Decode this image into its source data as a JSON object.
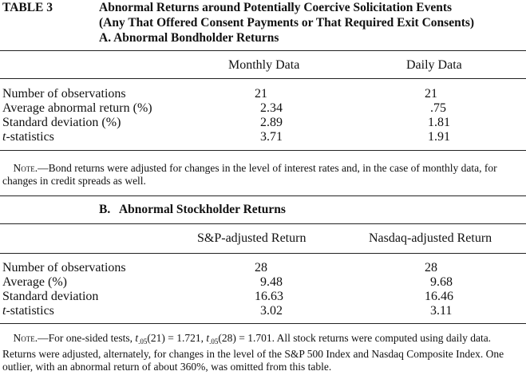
{
  "table_label": "TABLE 3",
  "title_line1": "Abnormal Returns around Potentially Coercive Solicitation Events",
  "title_line2": "(Any That Offered Consent Payments or That Required Exit Consents)",
  "panelA": {
    "heading": "A. Abnormal Bondholder Returns",
    "col1": "Monthly Data",
    "col2": "Daily Data",
    "rows": [
      {
        "label": "Number of observations",
        "c1": "21",
        "c2": "21"
      },
      {
        "label": "Average abnormal return (%)",
        "c1": "2.34",
        "c2": ".75"
      },
      {
        "label": "Standard deviation (%)",
        "c1": "2.89",
        "c2": "1.81"
      },
      {
        "label_italic": "t",
        "label_rest": "-statistics",
        "c1": "3.71",
        "c2": "1.91"
      }
    ],
    "note_prefix": "Note.",
    "note_text": "—Bond returns were adjusted for changes in the level of interest rates and, in the case of monthly data, for changes in credit spreads as well."
  },
  "panelB": {
    "heading": "B.   Abnormal Stockholder Returns",
    "col1": "S&P-adjusted Return",
    "col2": "Nasdaq-adjusted Return",
    "rows": [
      {
        "label": "Number of observations",
        "c1": "28",
        "c2": "28"
      },
      {
        "label": "Average (%)",
        "c1": "9.48",
        "c2": "9.68"
      },
      {
        "label": "Standard deviation",
        "c1": "16.63",
        "c2": "16.46"
      },
      {
        "label_italic": "t",
        "label_rest": "-statistics",
        "c1": "3.02",
        "c2": "3.11"
      }
    ],
    "note_prefix": "Note.",
    "note_a": "—For one-sided tests, ",
    "t_sym": "t",
    "sub": ".05",
    "arg1": "(21) = 1.721, ",
    "arg2": "(28) = 1.701. All stock returns were computed using daily data. Returns were adjusted, alternately, for changes in the level of the S&P 500 Index and Nasdaq Composite Index. One outlier, with an abnormal return of about 360%, was omitted from this table."
  }
}
